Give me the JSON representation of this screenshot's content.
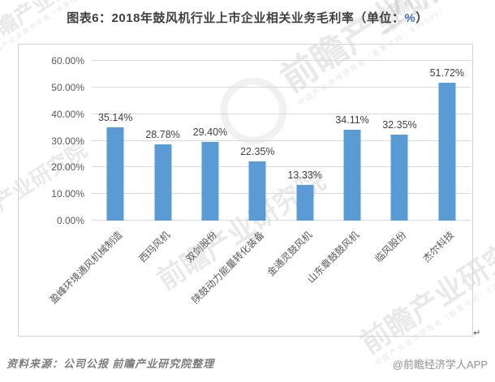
{
  "title": {
    "prefix": "图表6：2018年鼓风机行业上市企业相关业务毛利率（单位：",
    "unit": "%",
    "suffix": "）"
  },
  "chart_data": {
    "type": "bar",
    "title": "图表6：2018年鼓风机行业上市企业相关业务毛利率（单位：%）",
    "categories": [
      "盈峰环境通风机械制造",
      "西玛风机",
      "双剑股份",
      "陕鼓动力能量转化装备",
      "金通灵鼓风机",
      "山东章鼓鼓风机",
      "临风股份",
      "杰尔科技"
    ],
    "values": [
      35.14,
      28.78,
      29.4,
      22.35,
      13.33,
      34.11,
      32.35,
      51.72
    ],
    "value_labels": [
      "35.14%",
      "28.78%",
      "29.40%",
      "22.35%",
      "13.33%",
      "34.11%",
      "32.35%",
      "51.72%"
    ],
    "y_ticks": [
      "0.00%",
      "10.00%",
      "20.00%",
      "30.00%",
      "40.00%",
      "50.00%",
      "60.00%"
    ],
    "ylim": [
      0,
      60
    ],
    "xlabel": "",
    "ylabel": "",
    "grid": true,
    "legend": "none",
    "bar_color": "#5B9BD5"
  },
  "watermark": {
    "brand": "前瞻产业研究院",
    "tagline": "中国产业咨询领导者（股票代码：839599）"
  },
  "footer": {
    "source": "资料来源：公司公报 前瞻产业研究院整理",
    "credit": "@前瞻经济学人APP"
  },
  "misc": {
    "corner_glyph": "↵"
  },
  "colors": {
    "bar": "#5B9BD5",
    "grid": "#D9D9D9",
    "frame_border": "#D4D4D4",
    "axis_text": "#595959",
    "value_text": "#404040",
    "title_text": "#3F3F3F",
    "title_unit": "#4472C4",
    "source_text": "#7D7D7D",
    "credit_text": "#8F8F8F"
  }
}
